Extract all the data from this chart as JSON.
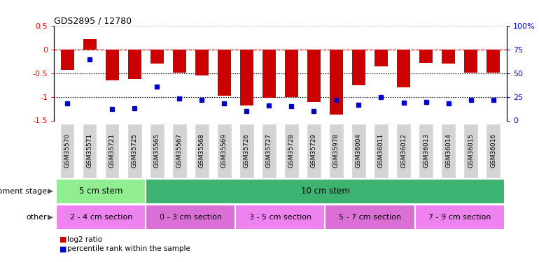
{
  "title": "GDS2895 / 12780",
  "samples": [
    "GSM35570",
    "GSM35571",
    "GSM35721",
    "GSM35725",
    "GSM35565",
    "GSM35567",
    "GSM35568",
    "GSM35569",
    "GSM35726",
    "GSM35727",
    "GSM35728",
    "GSM35729",
    "GSM35978",
    "GSM36004",
    "GSM36011",
    "GSM36012",
    "GSM36013",
    "GSM36014",
    "GSM36015",
    "GSM36016"
  ],
  "log2_ratio": [
    -0.42,
    0.22,
    -0.65,
    -0.62,
    -0.3,
    -0.48,
    -0.55,
    -0.97,
    -1.18,
    -1.02,
    -1.0,
    -1.1,
    -1.38,
    -0.75,
    -0.35,
    -0.8,
    -0.28,
    -0.3,
    -0.48,
    -0.48
  ],
  "percentile": [
    18,
    65,
    12,
    13,
    36,
    23,
    22,
    18,
    10,
    16,
    15,
    10,
    22,
    17,
    25,
    19,
    20,
    18,
    22,
    22
  ],
  "bar_color": "#cc0000",
  "dot_color": "#0000cc",
  "ylim_left": [
    -1.5,
    0.5
  ],
  "ylim_right": [
    0,
    100
  ],
  "hline_y": [
    0,
    -0.5,
    -1.0
  ],
  "hline_colors": [
    "#cc0000",
    "#000000",
    "#000000"
  ],
  "hline_styles": [
    "dashed",
    "dotted",
    "dotted"
  ],
  "dev_stage_groups": [
    {
      "label": "5 cm stem",
      "start": 0,
      "end": 3,
      "color": "#90ee90"
    },
    {
      "label": "10 cm stem",
      "start": 4,
      "end": 19,
      "color": "#3cb371"
    }
  ],
  "other_groups": [
    {
      "label": "2 - 4 cm section",
      "start": 0,
      "end": 3,
      "color": "#ee82ee"
    },
    {
      "label": "0 - 3 cm section",
      "start": 4,
      "end": 7,
      "color": "#da70d6"
    },
    {
      "label": "3 - 5 cm section",
      "start": 8,
      "end": 11,
      "color": "#ee82ee"
    },
    {
      "label": "5 - 7 cm section",
      "start": 12,
      "end": 15,
      "color": "#da70d6"
    },
    {
      "label": "7 - 9 cm section",
      "start": 16,
      "end": 19,
      "color": "#ee82ee"
    }
  ],
  "legend_items": [
    {
      "label": "log2 ratio",
      "color": "#cc0000"
    },
    {
      "label": "percentile rank within the sample",
      "color": "#0000cc"
    }
  ],
  "right_ticks": [
    0,
    25,
    50,
    75,
    100
  ],
  "right_tick_labels": [
    "0",
    "25",
    "50",
    "75",
    "100%"
  ],
  "left_ticks": [
    -1.5,
    -1.0,
    -0.5,
    0,
    0.5
  ],
  "left_tick_labels": [
    "-1.5",
    "-1",
    "-0.5",
    "0",
    "0.5"
  ],
  "xlim": [
    -0.6,
    19.6
  ],
  "bar_width": 0.6,
  "dot_size": 5,
  "tick_label_bg": "#d3d3d3"
}
